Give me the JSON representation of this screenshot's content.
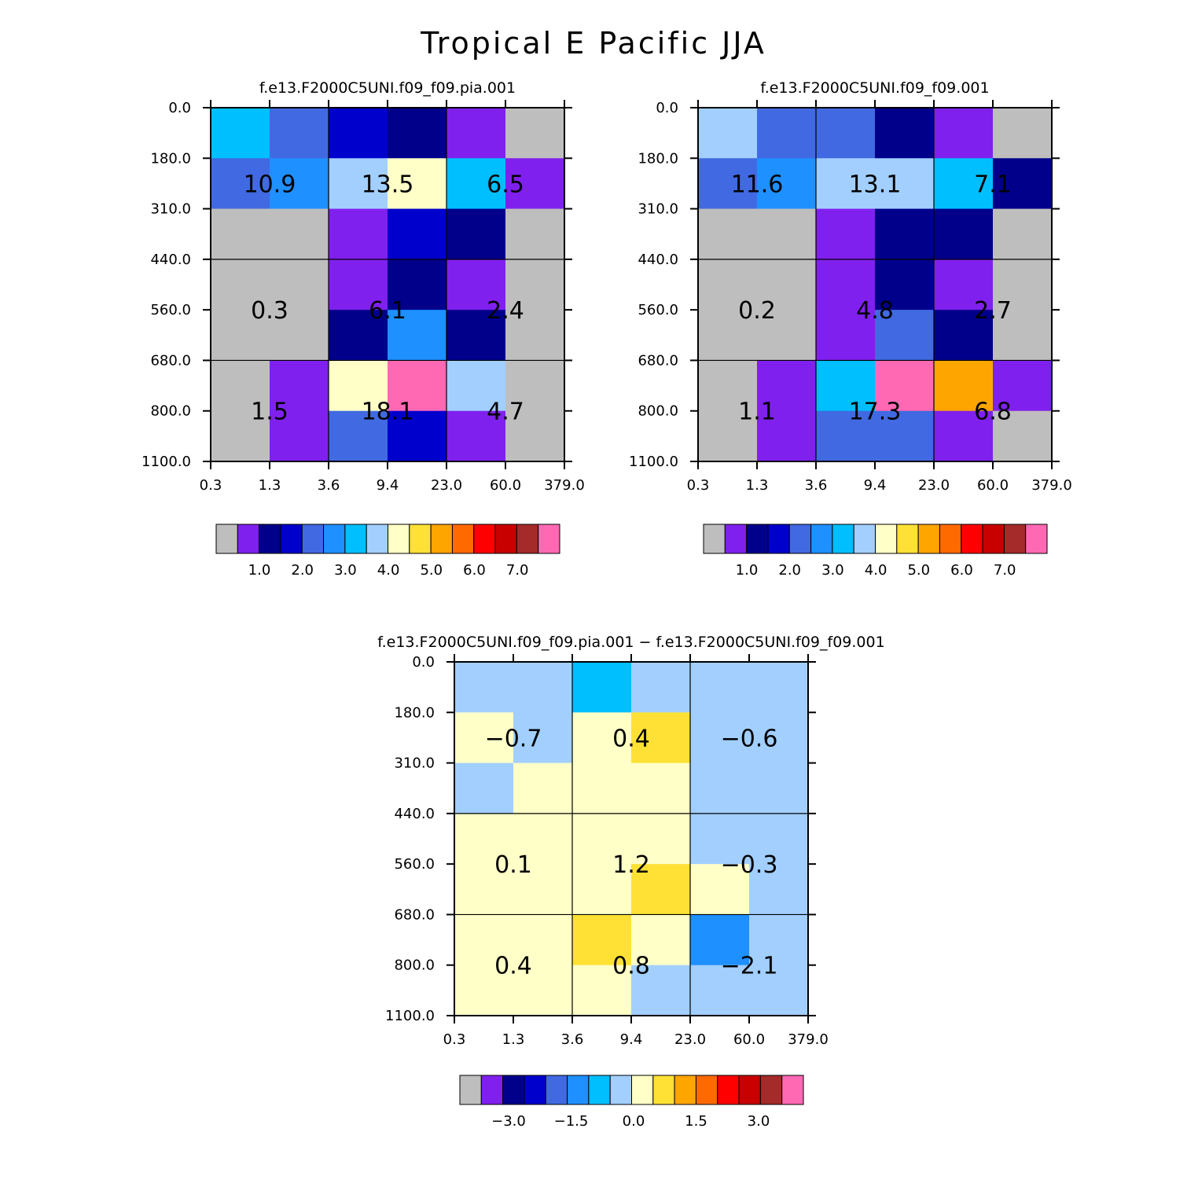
{
  "title": "Tropical E Pacific JJA",
  "colors": [
    "#bebebe",
    "#8020ee",
    "#00008b",
    "#0000cd",
    "#4169e1",
    "#1e90ff",
    "#00bfff",
    "#a2cffe",
    "#ffffc8",
    "#ffe135",
    "#ffa500",
    "#ff6a00",
    "#ff0000",
    "#c80000",
    "#a52a2a",
    "#ff69b4"
  ],
  "chart_data": [
    {
      "type": "heatmap",
      "title": "f.e13.F2000C5UNI.f09_f09.pia.001",
      "x_ticks": [
        "0.3",
        "1.3",
        "3.6",
        "9.4",
        "23.0",
        "60.0",
        "379.0"
      ],
      "y_ticks": [
        "0.0",
        "180.0",
        "310.0",
        "440.0",
        "560.0",
        "680.0",
        "800.0",
        "1100.0"
      ],
      "cell_colors": [
        [
          6,
          4,
          3,
          2,
          1,
          0
        ],
        [
          4,
          5,
          7,
          8,
          6,
          1
        ],
        [
          0,
          0,
          1,
          3,
          2,
          0
        ],
        [
          0,
          0,
          1,
          2,
          1,
          0
        ],
        [
          0,
          0,
          2,
          5,
          2,
          0
        ],
        [
          0,
          1,
          8,
          15,
          7,
          0
        ],
        [
          0,
          1,
          4,
          3,
          1,
          0
        ]
      ],
      "group_values": [
        [
          "10.9",
          "13.5",
          "6.5"
        ],
        [
          "0.3",
          "6.1",
          "2.4"
        ],
        [
          "1.5",
          "18.1",
          "4.7"
        ]
      ],
      "colorbar_labels": [
        "1.0",
        "2.0",
        "3.0",
        "4.0",
        "5.0",
        "6.0",
        "7.0"
      ]
    },
    {
      "type": "heatmap",
      "title": "f.e13.F2000C5UNI.f09_f09.001",
      "x_ticks": [
        "0.3",
        "1.3",
        "3.6",
        "9.4",
        "23.0",
        "60.0",
        "379.0"
      ],
      "y_ticks": [
        "0.0",
        "180.0",
        "310.0",
        "440.0",
        "560.0",
        "680.0",
        "800.0",
        "1100.0"
      ],
      "cell_colors": [
        [
          7,
          4,
          4,
          2,
          1,
          0
        ],
        [
          4,
          5,
          7,
          7,
          6,
          2
        ],
        [
          0,
          0,
          1,
          2,
          2,
          0
        ],
        [
          0,
          0,
          1,
          2,
          1,
          0
        ],
        [
          0,
          0,
          1,
          4,
          2,
          0
        ],
        [
          0,
          1,
          6,
          15,
          10,
          1
        ],
        [
          0,
          1,
          4,
          4,
          1,
          0
        ]
      ],
      "group_values": [
        [
          "11.6",
          "13.1",
          "7.1"
        ],
        [
          "0.2",
          "4.8",
          "2.7"
        ],
        [
          "1.1",
          "17.3",
          "6.8"
        ]
      ],
      "colorbar_labels": [
        "1.0",
        "2.0",
        "3.0",
        "4.0",
        "5.0",
        "6.0",
        "7.0"
      ]
    },
    {
      "type": "heatmap",
      "title": "f.e13.F2000C5UNI.f09_f09.pia.001 − f.e13.F2000C5UNI.f09_f09.001",
      "x_ticks": [
        "0.3",
        "1.3",
        "3.6",
        "9.4",
        "23.0",
        "60.0",
        "379.0"
      ],
      "y_ticks": [
        "0.0",
        "180.0",
        "310.0",
        "440.0",
        "560.0",
        "680.0",
        "800.0",
        "1100.0"
      ],
      "cell_colors": [
        [
          7,
          7,
          6,
          7,
          7,
          7
        ],
        [
          8,
          7,
          8,
          9,
          7,
          7
        ],
        [
          7,
          8,
          8,
          8,
          7,
          7
        ],
        [
          8,
          8,
          8,
          8,
          7,
          7
        ],
        [
          8,
          8,
          8,
          9,
          8,
          7
        ],
        [
          8,
          8,
          9,
          8,
          5,
          7
        ],
        [
          8,
          8,
          8,
          7,
          7,
          7
        ]
      ],
      "group_values": [
        [
          "−0.7",
          "0.4",
          "−0.6"
        ],
        [
          "0.1",
          "1.2",
          "−0.3"
        ],
        [
          "0.4",
          "0.8",
          "−2.1"
        ]
      ],
      "colorbar_labels": [
        "−3.0",
        "−1.5",
        "0.0",
        "1.5",
        "3.0"
      ]
    }
  ]
}
